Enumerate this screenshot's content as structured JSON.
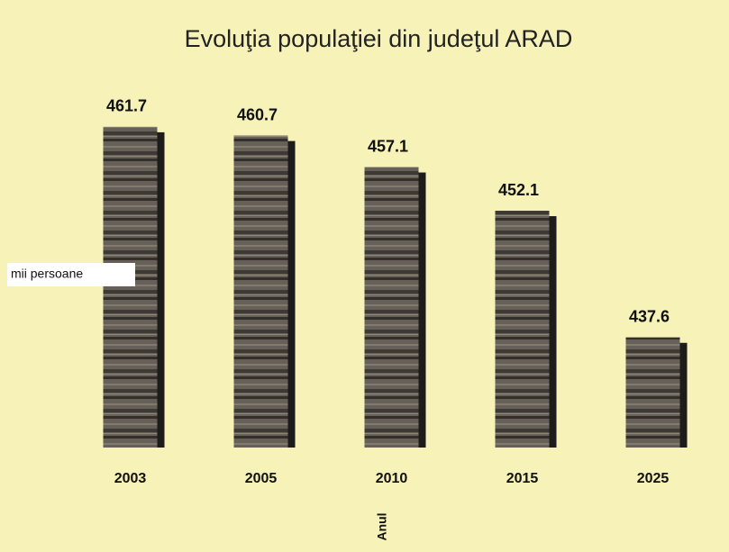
{
  "chart_data": {
    "type": "bar",
    "title": "Evoluţia populaţiei din judeţul ARAD",
    "y_label": "mii persoane",
    "x_label": "Anul",
    "categories": [
      "2003",
      "2005",
      "2010",
      "2015",
      "2025"
    ],
    "values": [
      461.7,
      460.7,
      457.1,
      452.1,
      437.6
    ],
    "color": "#4e4a46",
    "ylim": [
      425,
      462
    ]
  }
}
